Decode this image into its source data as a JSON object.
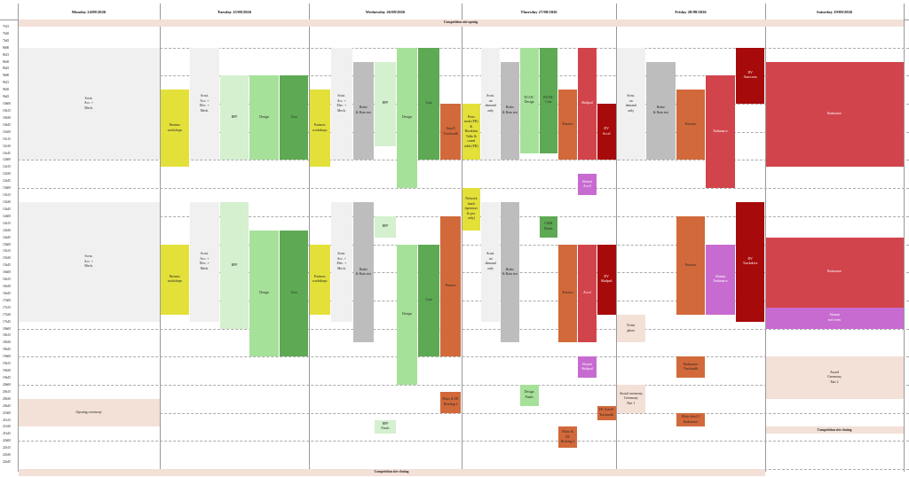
{
  "days": [
    "Monday 24/08/2026",
    "Tuesday 25/08/2026",
    "Wednesday 26/08/2026",
    "Thursday 27/08/2026",
    "Friday 28/08/2026",
    "Saturday 29/08/2026"
  ],
  "time_labels": [
    "7h15",
    "7h30",
    "7h45",
    "8h00",
    "8h15",
    "8h30",
    "8h45",
    "9h00",
    "9h15",
    "9h30",
    "9h45",
    "10h00",
    "10h15",
    "10h30",
    "10h45",
    "11h00",
    "11h15",
    "11h30",
    "11h45",
    "12h00",
    "12h15",
    "12h30",
    "12h45",
    "13h00",
    "13h15",
    "13h30",
    "13h45",
    "14h00",
    "14h15",
    "14h30",
    "14h45",
    "15h00",
    "15h15",
    "15h30",
    "15h45",
    "16h00",
    "16h15",
    "16h30",
    "16h45",
    "17h00",
    "17h15",
    "17h30",
    "17h45",
    "18h00",
    "18h15",
    "18h30",
    "18h45",
    "19h00",
    "19h15",
    "19h30",
    "19h45",
    "20h00",
    "20h15",
    "20h30",
    "20h45",
    "21h00",
    "21h15",
    "21h30",
    "21h45",
    "22h00",
    "22h15",
    "22h30",
    "22h45"
  ],
  "colors": {
    "scrut": "#f0f0f0",
    "partners": "#e3e03a",
    "bpp": "#d4f0cf",
    "design": "#a6e19a",
    "cost": "#5ea954",
    "brake": "#bdbdbd",
    "practice": "#d2693a",
    "red": "#d2444b",
    "darkred": "#a70a0a",
    "alumni": "#c76bd0",
    "peach": "#f3e0d6",
    "white": "#ffffff"
  },
  "events": [
    {
      "label": "Competition site openig",
      "day": 0,
      "col": 0,
      "ncol": 1,
      "span": 6,
      "start": "07:00",
      "end": "07:15",
      "color": "peach",
      "bold": true
    },
    {
      "label": "Competition site closing",
      "day": 0,
      "col": 0,
      "ncol": 1,
      "span": 5,
      "start": "23:00",
      "end": "23:15",
      "color": "peach",
      "bold": true
    },
    {
      "label": "Scrut.\nAcc. +\nMech.",
      "day": 0,
      "col": 0,
      "ncol": 1,
      "start": "08:00",
      "end": "12:00",
      "color": "scrut"
    },
    {
      "label": "Scrut.\nAcc. +\nMech.",
      "day": 0,
      "col": 0,
      "ncol": 1,
      "start": "13:30",
      "end": "17:45",
      "color": "scrut"
    },
    {
      "label": "Opening ceremony",
      "day": 0,
      "col": 0,
      "ncol": 1,
      "start": "20:30",
      "end": "21:30",
      "color": "peach"
    },
    {
      "label": "Partners\nworkshops",
      "day": 1,
      "col": 0,
      "ncol": 5,
      "start": "09:30",
      "end": "12:15",
      "color": "partners"
    },
    {
      "label": "Scrut.\nAcc. +\nElec. +\nMech.",
      "day": 1,
      "col": 1,
      "ncol": 5,
      "start": "08:00",
      "end": "12:00",
      "color": "scrut"
    },
    {
      "label": "BPP",
      "day": 1,
      "col": 2,
      "ncol": 5,
      "start": "09:00",
      "end": "12:00",
      "color": "bpp"
    },
    {
      "label": "Design",
      "day": 1,
      "col": 3,
      "ncol": 5,
      "start": "09:00",
      "end": "12:00",
      "color": "design"
    },
    {
      "label": "Cost",
      "day": 1,
      "col": 4,
      "ncol": 5,
      "start": "09:00",
      "end": "12:00",
      "color": "cost"
    },
    {
      "label": "Partners\nworkshops",
      "day": 1,
      "col": 0,
      "ncol": 5,
      "start": "15:00",
      "end": "17:30",
      "color": "partners"
    },
    {
      "label": "Scrut.\nAcc. +\nElec. +\nMech.",
      "day": 1,
      "col": 1,
      "ncol": 5,
      "start": "13:30",
      "end": "17:45",
      "color": "scrut"
    },
    {
      "label": "BPP",
      "day": 1,
      "col": 2,
      "ncol": 5,
      "start": "13:30",
      "end": "18:00",
      "color": "bpp"
    },
    {
      "label": "Design",
      "day": 1,
      "col": 3,
      "ncol": 5,
      "start": "14:30",
      "end": "19:00",
      "color": "design"
    },
    {
      "label": "Cost",
      "day": 1,
      "col": 4,
      "ncol": 5,
      "start": "14:30",
      "end": "19:00",
      "color": "cost"
    },
    {
      "label": "Partners\nworkshops",
      "day": 2,
      "col": 0,
      "ncol": 7,
      "start": "09:30",
      "end": "12:15",
      "color": "partners"
    },
    {
      "label": "Scrut.\nAcc. +\nElec. +\nMech.",
      "day": 2,
      "col": 1,
      "ncol": 7,
      "start": "08:00",
      "end": "12:00",
      "color": "scrut"
    },
    {
      "label": "Brake\n& Rain test",
      "day": 2,
      "col": 2,
      "ncol": 7,
      "start": "08:30",
      "end": "12:00",
      "color": "brake"
    },
    {
      "label": "BPP",
      "day": 2,
      "col": 3,
      "ncol": 7,
      "start": "08:30",
      "end": "11:30",
      "color": "bpp"
    },
    {
      "label": "Design",
      "day": 2,
      "col": 4,
      "ncol": 7,
      "start": "08:00",
      "end": "13:00",
      "color": "design"
    },
    {
      "label": "Cost",
      "day": 2,
      "col": 5,
      "ncol": 7,
      "start": "08:00",
      "end": "12:00",
      "color": "cost"
    },
    {
      "label": "AutoX\nTrackwalk",
      "day": 2,
      "col": 6,
      "ncol": 7,
      "start": "10:00",
      "end": "12:00",
      "color": "practice"
    },
    {
      "label": "Partners\nworkshops",
      "day": 2,
      "col": 0,
      "ncol": 7,
      "start": "15:00",
      "end": "17:30",
      "color": "partners"
    },
    {
      "label": "Scrut.\nAcc. +\nElec. +\nMech.",
      "day": 2,
      "col": 1,
      "ncol": 7,
      "start": "13:30",
      "end": "17:45",
      "color": "scrut"
    },
    {
      "label": "Brake\n& Rain test",
      "day": 2,
      "col": 2,
      "ncol": 7,
      "start": "13:30",
      "end": "18:30",
      "color": "brake"
    },
    {
      "label": "BPP",
      "day": 2,
      "col": 3,
      "ncol": 7,
      "start": "14:00",
      "end": "14:45",
      "color": "bpp"
    },
    {
      "label": "BPP\nFinals",
      "day": 2,
      "col": 3,
      "ncol": 7,
      "start": "21:15",
      "end": "21:45",
      "color": "bpp"
    },
    {
      "label": "Design",
      "day": 2,
      "col": 4,
      "ncol": 7,
      "start": "15:00",
      "end": "20:00",
      "color": "design"
    },
    {
      "label": "Cost",
      "day": 2,
      "col": 5,
      "ncol": 7,
      "start": "15:00",
      "end": "19:00",
      "color": "cost"
    },
    {
      "label": "Practice",
      "day": 2,
      "col": 6,
      "ncol": 7,
      "start": "14:00",
      "end": "19:00",
      "color": "practice"
    },
    {
      "label": "Pilots & DC\nBriefing 1",
      "day": 2,
      "col": 6,
      "ncol": 7,
      "start": "20:15",
      "end": "21:00",
      "color": "practice"
    },
    {
      "label": "Press\nmeal (FR)\n&\nBreakfast\nTalks &\nround\ntable (FR)",
      "day": 3,
      "col": 0,
      "ncol": 8,
      "start": "10:00",
      "end": "12:00",
      "color": "partners"
    },
    {
      "label": "Network\nlunch\n(sponsors\n& pro.\nonly)",
      "day": 3,
      "col": 0,
      "ncol": 8,
      "start": "13:00",
      "end": "14:30",
      "color": "partners"
    },
    {
      "label": "Scrut.\non\ndemand\nonly",
      "day": 3,
      "col": 1,
      "ncol": 8,
      "start": "08:00",
      "end": "12:00",
      "color": "scrut"
    },
    {
      "label": "Brake\n& Rain test",
      "day": 3,
      "col": 2,
      "ncol": 8,
      "start": "08:30",
      "end": "12:00",
      "color": "brake"
    },
    {
      "label": "EC/OC\nDesign",
      "day": 3,
      "col": 3,
      "ncol": 8,
      "start": "08:00",
      "end": "11:45",
      "color": "design"
    },
    {
      "label": "EC/OC\nCost",
      "day": 3,
      "col": 4,
      "ncol": 8,
      "start": "08:00",
      "end": "11:45",
      "color": "cost"
    },
    {
      "label": "Practice",
      "day": 3,
      "col": 5,
      "ncol": 8,
      "start": "09:30",
      "end": "12:00",
      "color": "practice"
    },
    {
      "label": "Skidpad",
      "day": 3,
      "col": 6,
      "ncol": 8,
      "start": "08:00",
      "end": "12:00",
      "color": "red",
      "dark": true
    },
    {
      "label": "DV\nAccel",
      "day": 3,
      "col": 7,
      "ncol": 8,
      "start": "10:00",
      "end": "12:00",
      "color": "darkred",
      "dark": true
    },
    {
      "label": "Alumni\nAccel",
      "day": 3,
      "col": 6,
      "ncol": 8,
      "start": "12:30",
      "end": "13:15",
      "color": "alumni",
      "dark": true
    },
    {
      "label": "Scrut.\non\ndemand\nonly",
      "day": 3,
      "col": 1,
      "ncol": 8,
      "start": "13:30",
      "end": "17:45",
      "color": "scrut"
    },
    {
      "label": "Brake\n& Rain test",
      "day": 3,
      "col": 2,
      "ncol": 8,
      "start": "13:30",
      "end": "18:30",
      "color": "brake"
    },
    {
      "label": "C&M\nFinals",
      "day": 3,
      "col": 4,
      "ncol": 8,
      "start": "14:00",
      "end": "14:45",
      "color": "cost"
    },
    {
      "label": "Practice",
      "day": 3,
      "col": 5,
      "ncol": 8,
      "start": "15:00",
      "end": "18:30",
      "color": "practice"
    },
    {
      "label": "Accel",
      "day": 3,
      "col": 6,
      "ncol": 8,
      "start": "15:00",
      "end": "18:30",
      "color": "red",
      "dark": true
    },
    {
      "label": "DV\nSkidpad",
      "day": 3,
      "col": 7,
      "ncol": 8,
      "start": "15:00",
      "end": "17:30",
      "color": "darkred",
      "dark": true
    },
    {
      "label": "Alumni\nSkidpad",
      "day": 3,
      "col": 6,
      "ncol": 8,
      "start": "19:00",
      "end": "19:45",
      "color": "alumni",
      "dark": true
    },
    {
      "label": "Design\nFinals",
      "day": 3,
      "col": 3,
      "ncol": 8,
      "start": "20:00",
      "end": "20:45",
      "color": "design"
    },
    {
      "label": "DC AutoX\nTrackwalk",
      "day": 3,
      "col": 7,
      "ncol": 8,
      "start": "20:45",
      "end": "21:15",
      "color": "practice"
    },
    {
      "label": "Pilots & DC\nBriefing 2",
      "day": 3,
      "col": 5,
      "ncol": 8,
      "start": "21:30",
      "end": "22:15",
      "color": "practice"
    },
    {
      "label": "Scrut.\non\ndemand\nonly",
      "day": 4,
      "col": 0,
      "ncol": 5,
      "start": "08:00",
      "end": "12:00",
      "color": "scrut"
    },
    {
      "label": "Brake\n& Rain test",
      "day": 4,
      "col": 1,
      "ncol": 5,
      "start": "08:30",
      "end": "12:00",
      "color": "brake"
    },
    {
      "label": "Practice",
      "day": 4,
      "col": 2,
      "ncol": 5,
      "start": "09:30",
      "end": "12:00",
      "color": "practice"
    },
    {
      "label": "Endurance",
      "day": 4,
      "col": 3,
      "ncol": 5,
      "start": "09:00",
      "end": "13:00",
      "color": "red",
      "dark": true
    },
    {
      "label": "DV\nAutocross",
      "day": 4,
      "col": 4,
      "ncol": 5,
      "start": "08:00",
      "end": "10:00",
      "color": "darkred",
      "dark": true
    },
    {
      "label": "Practice",
      "day": 4,
      "col": 2,
      "ncol": 5,
      "start": "14:00",
      "end": "17:30",
      "color": "practice"
    },
    {
      "label": "Alumni\nEndurance",
      "day": 4,
      "col": 3,
      "ncol": 5,
      "start": "15:00",
      "end": "17:30",
      "color": "alumni",
      "dark": true
    },
    {
      "label": "DV\nTrackdrive",
      "day": 4,
      "col": 4,
      "ncol": 5,
      "start": "13:30",
      "end": "17:45",
      "color": "darkred",
      "dark": true
    },
    {
      "label": "Event\nphoto",
      "day": 4,
      "col": 0,
      "ncol": 5,
      "start": "17:30",
      "end": "18:30",
      "color": "peach"
    },
    {
      "label": "Endurance\nTrackwalk",
      "day": 4,
      "col": 2,
      "ncol": 5,
      "start": "19:00",
      "end": "19:45",
      "color": "practice"
    },
    {
      "label": "Award ceremony\nCeremony\nPart 1",
      "day": 4,
      "col": 0,
      "ncol": 5,
      "start": "20:00",
      "end": "21:00",
      "color": "peach"
    },
    {
      "label": "Pilots brief 3\nEndurance",
      "day": 4,
      "col": 2,
      "ncol": 5,
      "start": "21:00",
      "end": "21:30",
      "color": "practice"
    },
    {
      "label": "Endurance",
      "day": 5,
      "col": 0,
      "ncol": 1,
      "start": "08:30",
      "end": "12:15",
      "color": "red",
      "dark": true
    },
    {
      "label": "Endurance",
      "day": 5,
      "col": 0,
      "ncol": 1,
      "start": "14:45",
      "end": "17:15",
      "color": "red",
      "dark": true
    },
    {
      "label": "Alumni\nend event",
      "day": 5,
      "col": 0,
      "ncol": 1,
      "start": "17:15",
      "end": "18:00",
      "color": "alumni",
      "dark": true
    },
    {
      "label": "Award\nCeremony\nPart 2",
      "day": 5,
      "col": 0,
      "ncol": 1,
      "start": "19:00",
      "end": "20:30",
      "color": "peach"
    },
    {
      "label": "Competition site closing",
      "day": 5,
      "col": 0,
      "ncol": 1,
      "start": "21:30",
      "end": "21:45",
      "color": "peach",
      "bold": true
    }
  ]
}
